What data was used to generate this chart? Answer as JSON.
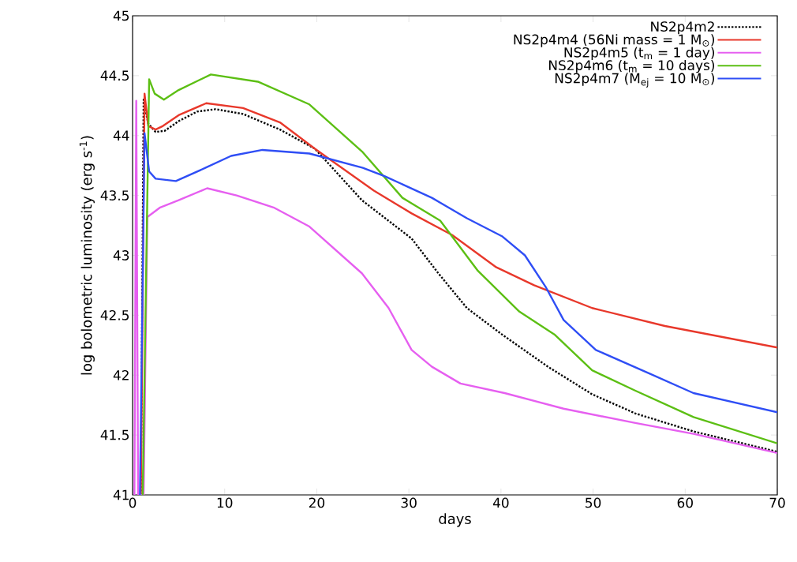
{
  "chart_data": {
    "type": "line",
    "xlabel": "days",
    "ylabel": "log bolometric luminosity (erg s$^{-1}$)",
    "xlim": [
      0,
      70
    ],
    "ylim": [
      41,
      45
    ],
    "xticks": [
      0,
      10,
      20,
      30,
      40,
      50,
      60,
      70
    ],
    "yticks": [
      41,
      41.5,
      42,
      42.5,
      43,
      43.5,
      44,
      44.5,
      45
    ],
    "legend": "top right",
    "grid": false,
    "series": [
      {
        "name": "NS2p4m2",
        "color": "#000000",
        "line_style": "dotted",
        "x": [
          0.9,
          1.2,
          1.7,
          2.5,
          3.5,
          5,
          7,
          9,
          12,
          16,
          19.8,
          24.9,
          30.3,
          33.2,
          36.3,
          40.1,
          45.1,
          49.9,
          54.6,
          60.9,
          70
        ],
        "values": [
          41,
          44.3,
          44.1,
          44.03,
          44.04,
          44.12,
          44.2,
          44.22,
          44.18,
          44.05,
          43.89,
          43.46,
          43.14,
          42.85,
          42.56,
          42.34,
          42.07,
          41.84,
          41.68,
          41.53,
          41.36
        ]
      },
      {
        "name": "NS2p4m4 (56Ni mass = 1 M$_{⊙}$)",
        "color": "#e8382b",
        "line_style": "solid",
        "x": [
          0.9,
          1.3,
          1.7,
          2.5,
          3.3,
          5,
          8,
          12,
          16,
          19.8,
          26.2,
          30.3,
          34.7,
          39.5,
          43.6,
          49.9,
          57.8,
          70
        ],
        "values": [
          41,
          44.35,
          44.08,
          44.05,
          44.08,
          44.17,
          44.27,
          44.23,
          44.11,
          43.89,
          43.54,
          43.35,
          43.17,
          42.9,
          42.75,
          42.56,
          42.41,
          42.23
        ]
      },
      {
        "name": "NS2p4m5 (t$_{m}$ = 1 day)",
        "color": "#e65ff0",
        "line_style": "solid",
        "x": [
          0.2,
          0.4,
          0.6,
          1.2,
          1.6,
          3,
          5,
          8.1,
          11.3,
          15.3,
          19.2,
          24.9,
          27.8,
          30.3,
          32.5,
          35.6,
          40.4,
          46.8,
          54.6,
          60.9,
          70
        ],
        "values": [
          41,
          44.29,
          41,
          41,
          43.32,
          43.4,
          43.46,
          43.56,
          43.5,
          43.4,
          43.24,
          42.85,
          42.56,
          42.21,
          42.07,
          41.93,
          41.85,
          41.72,
          41.6,
          41.51,
          41.35
        ]
      },
      {
        "name": "NS2p4m6 (t$_{m}$ = 10 days)",
        "color": "#5cbf14",
        "line_style": "solid",
        "x": [
          1.1,
          1.8,
          2.4,
          3.4,
          5,
          8.5,
          13.6,
          19.2,
          25,
          29.3,
          33.4,
          37.5,
          42,
          45.8,
          49.9,
          54.6,
          60.9,
          70
        ],
        "values": [
          41,
          44.47,
          44.35,
          44.3,
          44.38,
          44.51,
          44.45,
          44.26,
          43.86,
          43.48,
          43.29,
          42.87,
          42.53,
          42.34,
          42.04,
          41.87,
          41.65,
          41.43
        ]
      },
      {
        "name": "NS2p4m7 (M$_{ej}$ = 10 M$_{⊙}$)",
        "color": "#2f4ef5",
        "line_style": "solid",
        "x": [
          0.8,
          1.3,
          1.8,
          2.5,
          4.7,
          7.9,
          10.7,
          14.1,
          19.2,
          25,
          27.4,
          32.5,
          36.3,
          40.1,
          42.6,
          44.9,
          46.8,
          50.3,
          56.2,
          60.9,
          70
        ],
        "values": [
          41,
          44.02,
          43.7,
          43.64,
          43.62,
          43.73,
          43.83,
          43.88,
          43.85,
          43.73,
          43.66,
          43.48,
          43.31,
          43.16,
          43,
          42.73,
          42.46,
          42.21,
          42.01,
          41.85,
          41.69
        ]
      }
    ]
  }
}
